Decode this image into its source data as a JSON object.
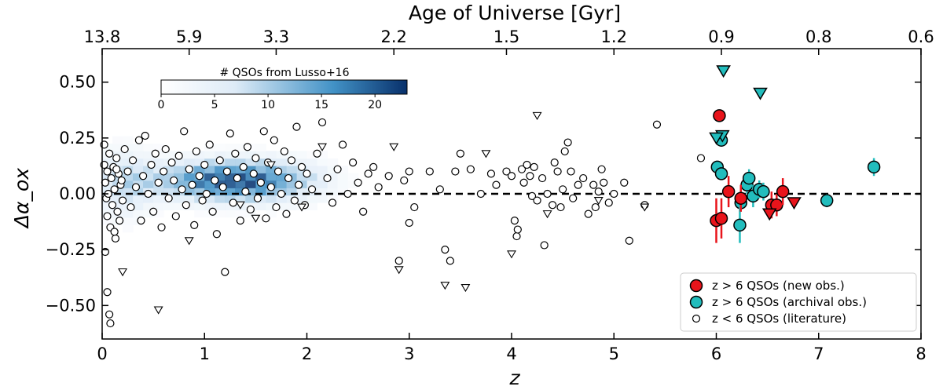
{
  "chart_data": {
    "type": "scatter",
    "xlabel": "z",
    "ylabel": "Δα_ox",
    "xlim": [
      0,
      8
    ],
    "ylim": [
      -0.65,
      0.65
    ],
    "x_ticks": [
      "0",
      "1",
      "2",
      "3",
      "4",
      "5",
      "6",
      "7",
      "8"
    ],
    "y_ticks": [
      "−0.50",
      "−0.25",
      "0.00",
      "0.25",
      "0.50"
    ],
    "top_axis": {
      "label": "Age of Universe [Gyr]",
      "ticks": [
        {
          "z": 0.0,
          "label": "13.8"
        },
        {
          "z": 0.85,
          "label": "5.9"
        },
        {
          "z": 1.7,
          "label": "3.3"
        },
        {
          "z": 2.85,
          "label": "2.2"
        },
        {
          "z": 3.95,
          "label": "1.5"
        },
        {
          "z": 5.0,
          "label": "1.2"
        },
        {
          "z": 6.05,
          "label": "0.9"
        },
        {
          "z": 7.0,
          "label": "0.8"
        },
        {
          "z": 8.0,
          "label": "0.6"
        }
      ]
    },
    "reference_line": {
      "y": 0.0,
      "style": "dashed"
    },
    "colorbar": {
      "label": "# QSOs from Lusso+16",
      "range": [
        0,
        23
      ],
      "ticks": [
        "0",
        "5",
        "10",
        "15",
        "20"
      ],
      "colormap": "Blues"
    },
    "legend": {
      "position": "bottom-right",
      "entries": [
        {
          "label": "z > 6 QSOs (new obs.)",
          "color": "#e8141b"
        },
        {
          "label": "z > 6 QSOs (archival obs.)",
          "color": "#22bdbd"
        },
        {
          "label": "z < 6 QSOs (literature)",
          "color": "#ffffff"
        }
      ]
    },
    "series": [
      {
        "name": "z > 6 QSOs (new obs.)",
        "color": "#e8141b",
        "points": [
          {
            "x": 6.0,
            "y": -0.12,
            "err": 0.1
          },
          {
            "x": 6.05,
            "y": -0.11,
            "err": 0.09
          },
          {
            "x": 6.03,
            "y": 0.35,
            "err": 0.0
          },
          {
            "x": 6.12,
            "y": 0.01,
            "err": 0.07
          },
          {
            "x": 6.24,
            "y": -0.02,
            "err": 0.06
          },
          {
            "x": 6.54,
            "y": -0.05,
            "err": 0.06
          },
          {
            "x": 6.59,
            "y": -0.05,
            "err": 0.05
          },
          {
            "x": 6.65,
            "y": 0.01,
            "err": 0.06
          }
        ],
        "upper_limits": [
          {
            "x": 6.52,
            "y": -0.09
          },
          {
            "x": 6.76,
            "y": -0.04
          }
        ]
      },
      {
        "name": "z > 6 QSOs (archival obs.)",
        "color": "#22bdbd",
        "points": [
          {
            "x": 6.05,
            "y": 0.24,
            "err": 0.0
          },
          {
            "x": 6.01,
            "y": 0.12,
            "err": 0.0
          },
          {
            "x": 6.05,
            "y": 0.09,
            "err": 0.0
          },
          {
            "x": 6.24,
            "y": -0.04,
            "err": 0.04
          },
          {
            "x": 6.23,
            "y": -0.14,
            "err": 0.08
          },
          {
            "x": 6.3,
            "y": 0.04,
            "err": 0.04
          },
          {
            "x": 6.32,
            "y": 0.07,
            "err": 0.04
          },
          {
            "x": 6.36,
            "y": -0.01,
            "err": 0.05
          },
          {
            "x": 6.42,
            "y": 0.02,
            "err": 0.04
          },
          {
            "x": 6.46,
            "y": 0.01,
            "err": 0.04
          },
          {
            "x": 7.08,
            "y": -0.03,
            "err": 0.03
          },
          {
            "x": 7.54,
            "y": 0.12,
            "err": 0.04
          }
        ],
        "upper_limits": [
          {
            "x": 6.07,
            "y": 0.55
          },
          {
            "x": 6.43,
            "y": 0.45
          },
          {
            "x": 6.06,
            "y": 0.26
          },
          {
            "x": 6.0,
            "y": 0.25
          }
        ]
      },
      {
        "name": "z < 6 QSOs (literature)",
        "color": "#ffffff",
        "points": [
          {
            "x": 0.02,
            "y": 0.13
          },
          {
            "x": 0.03,
            "y": 0.05
          },
          {
            "x": 0.04,
            "y": -0.02
          },
          {
            "x": 0.05,
            "y": 0.1
          },
          {
            "x": 0.05,
            "y": -0.1
          },
          {
            "x": 0.06,
            "y": 0.0
          },
          {
            "x": 0.07,
            "y": 0.18
          },
          {
            "x": 0.08,
            "y": -0.15
          },
          {
            "x": 0.09,
            "y": 0.07
          },
          {
            "x": 0.1,
            "y": -0.05
          },
          {
            "x": 0.11,
            "y": 0.12
          },
          {
            "x": 0.12,
            "y": 0.02
          },
          {
            "x": 0.13,
            "y": -0.2
          },
          {
            "x": 0.14,
            "y": 0.16
          },
          {
            "x": 0.15,
            "y": -0.08
          },
          {
            "x": 0.16,
            "y": 0.09
          },
          {
            "x": 0.18,
            "y": 0.04
          },
          {
            "x": 0.2,
            "y": -0.03
          },
          {
            "x": 0.22,
            "y": 0.2
          },
          {
            "x": 0.03,
            "y": -0.26
          },
          {
            "x": 0.05,
            "y": -0.44
          },
          {
            "x": 0.07,
            "y": -0.54
          },
          {
            "x": 0.08,
            "y": -0.58
          },
          {
            "x": 0.02,
            "y": 0.22
          },
          {
            "x": 0.12,
            "y": -0.17
          },
          {
            "x": 0.14,
            "y": 0.11
          },
          {
            "x": 0.17,
            "y": -0.12
          },
          {
            "x": 0.19,
            "y": 0.06
          },
          {
            "x": 0.25,
            "y": 0.1
          },
          {
            "x": 0.28,
            "y": -0.06
          },
          {
            "x": 0.3,
            "y": 0.15
          },
          {
            "x": 0.33,
            "y": 0.03
          },
          {
            "x": 0.36,
            "y": 0.24
          },
          {
            "x": 0.38,
            "y": -0.12
          },
          {
            "x": 0.4,
            "y": 0.08
          },
          {
            "x": 0.42,
            "y": 0.26
          },
          {
            "x": 0.45,
            "y": 0.0
          },
          {
            "x": 0.48,
            "y": 0.13
          },
          {
            "x": 0.5,
            "y": -0.08
          },
          {
            "x": 0.52,
            "y": 0.18
          },
          {
            "x": 0.55,
            "y": 0.05
          },
          {
            "x": 0.58,
            "y": -0.15
          },
          {
            "x": 0.6,
            "y": 0.1
          },
          {
            "x": 0.62,
            "y": 0.2
          },
          {
            "x": 0.65,
            "y": -0.02
          },
          {
            "x": 0.68,
            "y": 0.14
          },
          {
            "x": 0.7,
            "y": 0.06
          },
          {
            "x": 0.72,
            "y": -0.1
          },
          {
            "x": 0.75,
            "y": 0.17
          },
          {
            "x": 0.78,
            "y": 0.02
          },
          {
            "x": 0.8,
            "y": 0.28
          },
          {
            "x": 0.82,
            "y": -0.05
          },
          {
            "x": 0.85,
            "y": 0.11
          },
          {
            "x": 0.88,
            "y": 0.04
          },
          {
            "x": 0.9,
            "y": -0.14
          },
          {
            "x": 0.92,
            "y": 0.19
          },
          {
            "x": 0.95,
            "y": 0.08
          },
          {
            "x": 0.98,
            "y": -0.03
          },
          {
            "x": 1.0,
            "y": 0.13
          },
          {
            "x": 1.02,
            "y": 0.0
          },
          {
            "x": 1.05,
            "y": 0.22
          },
          {
            "x": 1.08,
            "y": -0.08
          },
          {
            "x": 1.1,
            "y": 0.06
          },
          {
            "x": 1.12,
            "y": -0.18
          },
          {
            "x": 1.15,
            "y": 0.15
          },
          {
            "x": 1.18,
            "y": 0.03
          },
          {
            "x": 1.2,
            "y": -0.35
          },
          {
            "x": 1.22,
            "y": 0.1
          },
          {
            "x": 1.25,
            "y": 0.27
          },
          {
            "x": 1.28,
            "y": -0.04
          },
          {
            "x": 1.3,
            "y": 0.18
          },
          {
            "x": 1.32,
            "y": 0.07
          },
          {
            "x": 1.35,
            "y": -0.12
          },
          {
            "x": 1.38,
            "y": 0.12
          },
          {
            "x": 1.4,
            "y": 0.01
          },
          {
            "x": 1.42,
            "y": 0.21
          },
          {
            "x": 1.45,
            "y": -0.07
          },
          {
            "x": 1.48,
            "y": 0.09
          },
          {
            "x": 1.5,
            "y": 0.16
          },
          {
            "x": 1.52,
            "y": -0.02
          },
          {
            "x": 1.55,
            "y": 0.05
          },
          {
            "x": 1.58,
            "y": 0.28
          },
          {
            "x": 1.6,
            "y": -0.11
          },
          {
            "x": 1.62,
            "y": 0.14
          },
          {
            "x": 1.65,
            "y": 0.03
          },
          {
            "x": 1.68,
            "y": 0.24
          },
          {
            "x": 1.7,
            "y": -0.06
          },
          {
            "x": 1.72,
            "y": 0.1
          },
          {
            "x": 1.75,
            "y": 0.0
          },
          {
            "x": 1.78,
            "y": 0.19
          },
          {
            "x": 1.8,
            "y": -0.09
          },
          {
            "x": 1.82,
            "y": 0.07
          },
          {
            "x": 1.85,
            "y": 0.15
          },
          {
            "x": 1.88,
            "y": -0.03
          },
          {
            "x": 1.9,
            "y": 0.3
          },
          {
            "x": 1.92,
            "y": 0.04
          },
          {
            "x": 1.95,
            "y": 0.12
          },
          {
            "x": 1.98,
            "y": -0.05
          },
          {
            "x": 2.0,
            "y": 0.09
          },
          {
            "x": 2.05,
            "y": 0.02
          },
          {
            "x": 2.1,
            "y": 0.18
          },
          {
            "x": 2.15,
            "y": 0.32
          },
          {
            "x": 2.2,
            "y": 0.07
          },
          {
            "x": 2.25,
            "y": -0.04
          },
          {
            "x": 2.3,
            "y": 0.11
          },
          {
            "x": 2.35,
            "y": 0.22
          },
          {
            "x": 2.4,
            "y": 0.0
          },
          {
            "x": 2.45,
            "y": 0.14
          },
          {
            "x": 2.5,
            "y": 0.05
          },
          {
            "x": 2.55,
            "y": -0.08
          },
          {
            "x": 2.6,
            "y": 0.09
          },
          {
            "x": 2.65,
            "y": 0.12
          },
          {
            "x": 2.7,
            "y": 0.03
          },
          {
            "x": 2.8,
            "y": 0.08
          },
          {
            "x": 2.9,
            "y": -0.3
          },
          {
            "x": 2.95,
            "y": 0.06
          },
          {
            "x": 3.0,
            "y": 0.1
          },
          {
            "x": 3.05,
            "y": -0.06
          },
          {
            "x": 3.2,
            "y": 0.1
          },
          {
            "x": 3.3,
            "y": 0.02
          },
          {
            "x": 3.35,
            "y": -0.25
          },
          {
            "x": 3.4,
            "y": -0.3
          },
          {
            "x": 3.45,
            "y": 0.1
          },
          {
            "x": 3.5,
            "y": 0.18
          },
          {
            "x": 3.6,
            "y": 0.11
          },
          {
            "x": 3.7,
            "y": 0.0
          },
          {
            "x": 3.8,
            "y": 0.09
          },
          {
            "x": 3.85,
            "y": 0.04
          },
          {
            "x": 3.95,
            "y": 0.1
          },
          {
            "x": 4.0,
            "y": 0.08
          },
          {
            "x": 4.03,
            "y": -0.12
          },
          {
            "x": 4.05,
            "y": -0.19
          },
          {
            "x": 4.06,
            "y": -0.16
          },
          {
            "x": 4.1,
            "y": 0.11
          },
          {
            "x": 4.12,
            "y": 0.05
          },
          {
            "x": 4.15,
            "y": 0.13
          },
          {
            "x": 4.18,
            "y": 0.08
          },
          {
            "x": 4.2,
            "y": -0.01
          },
          {
            "x": 4.22,
            "y": 0.12
          },
          {
            "x": 4.25,
            "y": -0.03
          },
          {
            "x": 4.3,
            "y": 0.07
          },
          {
            "x": 4.32,
            "y": -0.23
          },
          {
            "x": 4.35,
            "y": 0.0
          },
          {
            "x": 4.4,
            "y": -0.05
          },
          {
            "x": 4.42,
            "y": 0.14
          },
          {
            "x": 4.45,
            "y": 0.1
          },
          {
            "x": 4.48,
            "y": -0.06
          },
          {
            "x": 4.5,
            "y": 0.02
          },
          {
            "x": 4.52,
            "y": 0.19
          },
          {
            "x": 4.55,
            "y": 0.23
          },
          {
            "x": 4.58,
            "y": 0.1
          },
          {
            "x": 4.6,
            "y": -0.02
          },
          {
            "x": 4.65,
            "y": 0.04
          },
          {
            "x": 4.7,
            "y": 0.07
          },
          {
            "x": 4.75,
            "y": -0.09
          },
          {
            "x": 4.8,
            "y": 0.04
          },
          {
            "x": 4.82,
            "y": -0.06
          },
          {
            "x": 4.85,
            "y": 0.01
          },
          {
            "x": 4.88,
            "y": 0.11
          },
          {
            "x": 4.9,
            "y": 0.05
          },
          {
            "x": 4.95,
            "y": -0.04
          },
          {
            "x": 5.0,
            "y": 0.0
          },
          {
            "x": 5.1,
            "y": 0.05
          },
          {
            "x": 5.15,
            "y": -0.21
          },
          {
            "x": 5.3,
            "y": -0.05
          },
          {
            "x": 5.42,
            "y": 0.31
          },
          {
            "x": 5.85,
            "y": 0.16
          },
          {
            "x": 3.0,
            "y": -0.13
          }
        ],
        "upper_limits": [
          {
            "x": 0.2,
            "y": -0.35
          },
          {
            "x": 0.55,
            "y": -0.52
          },
          {
            "x": 0.85,
            "y": -0.21
          },
          {
            "x": 1.35,
            "y": -0.05
          },
          {
            "x": 1.5,
            "y": -0.11
          },
          {
            "x": 1.65,
            "y": 0.13
          },
          {
            "x": 1.95,
            "y": -0.06
          },
          {
            "x": 2.15,
            "y": 0.21
          },
          {
            "x": 2.85,
            "y": 0.21
          },
          {
            "x": 2.9,
            "y": -0.34
          },
          {
            "x": 3.35,
            "y": -0.41
          },
          {
            "x": 3.55,
            "y": -0.42
          },
          {
            "x": 3.75,
            "y": 0.18
          },
          {
            "x": 4.0,
            "y": -0.27
          },
          {
            "x": 4.25,
            "y": 0.35
          },
          {
            "x": 4.35,
            "y": -0.09
          },
          {
            "x": 4.85,
            "y": -0.03
          },
          {
            "x": 5.3,
            "y": -0.06
          }
        ]
      }
    ]
  }
}
